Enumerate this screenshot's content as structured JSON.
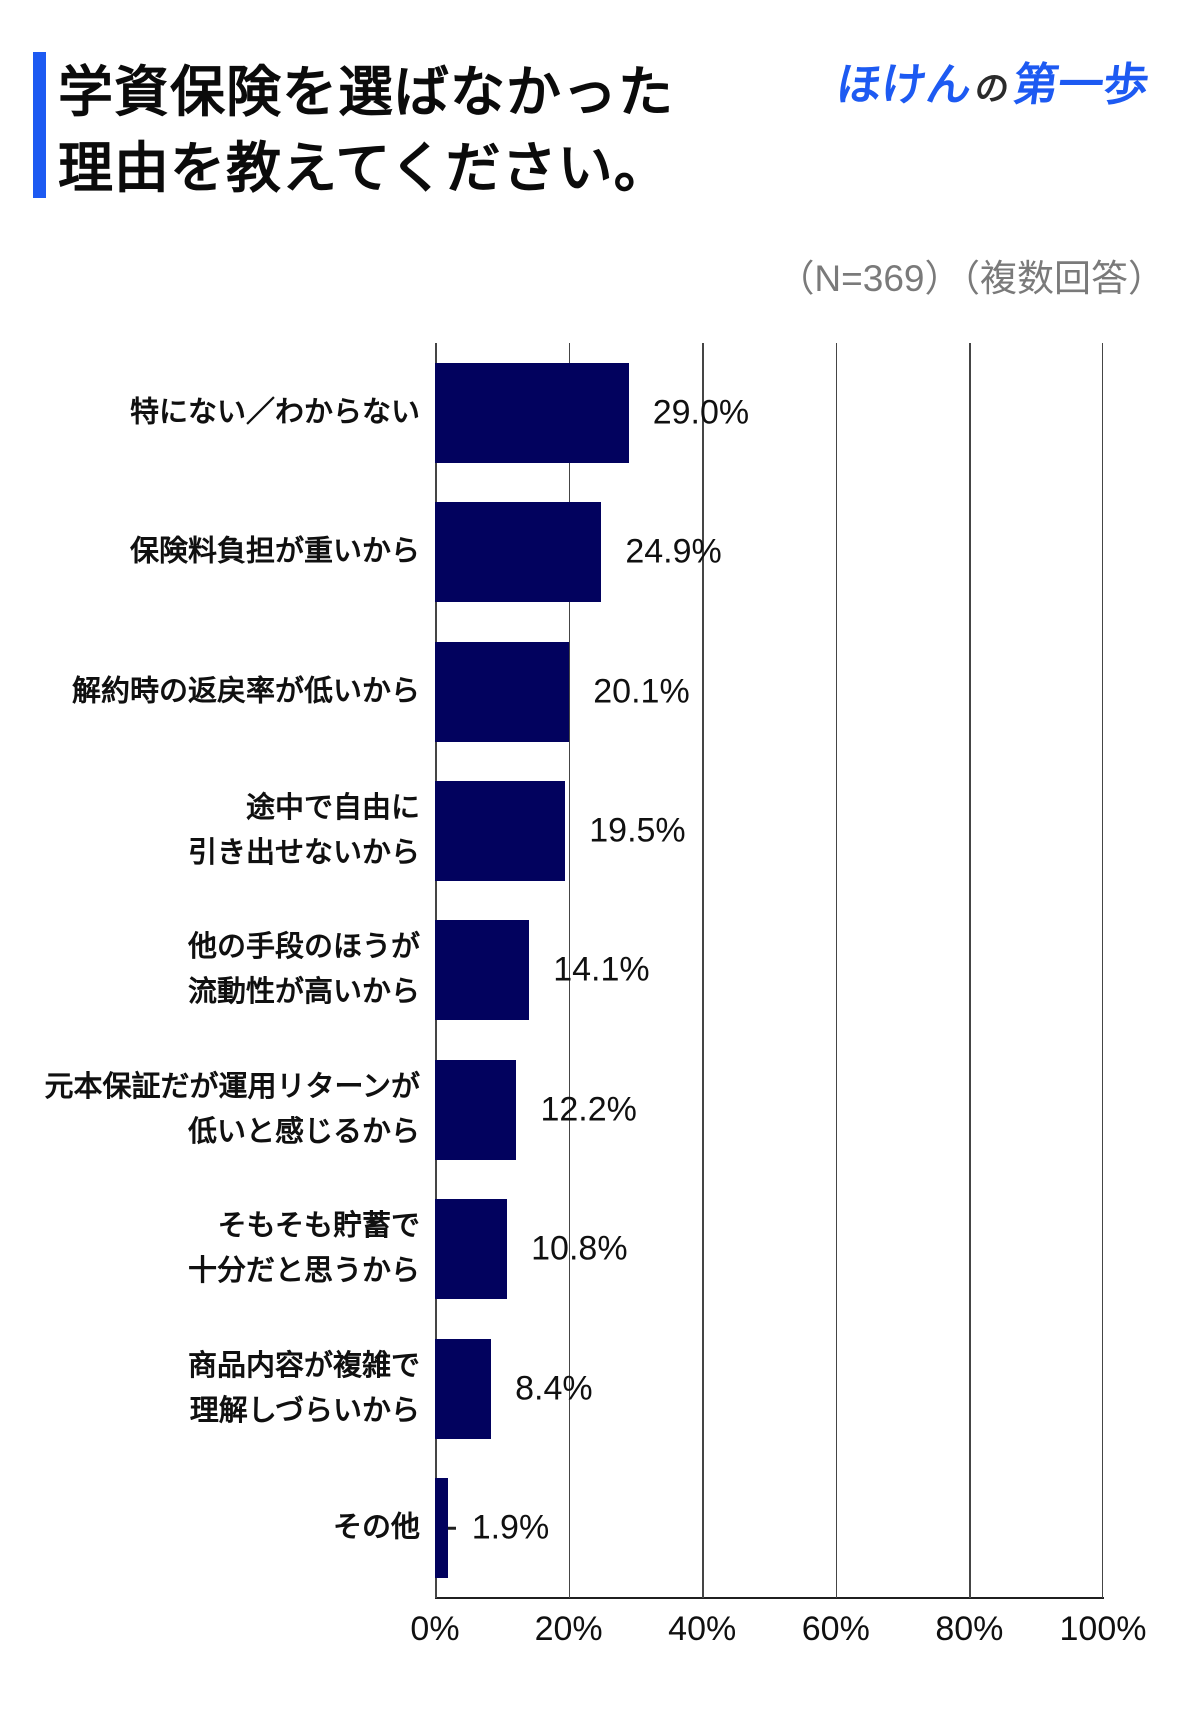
{
  "header": {
    "title_lines": [
      "学資保険を選ばなかった",
      "理由を教えてください。"
    ],
    "accent_color": "#1d5af2"
  },
  "logo": {
    "part1": "ほけん",
    "part2": "の",
    "part3": "第一歩",
    "blue": "#1d5af2",
    "dark": "#2b2b2b"
  },
  "survey_note": "（N=369）（複数回答）",
  "chart_data": {
    "type": "bar",
    "orientation": "horizontal",
    "title": "学資保険を選ばなかった理由を教えてください。",
    "sample_note": "（N=369）（複数回答）",
    "categories": [
      "特にない／わからない",
      "保険料負担が重いから",
      "解約時の返戻率が低いから",
      "途中で自由に引き出せないから",
      "他の手段のほうが流動性が高いから",
      "元本保証だが運用リターンが低いと感じるから",
      "そもそも貯蓄で十分だと思うから",
      "商品内容が複雑で理解しづらいから",
      "その他"
    ],
    "category_lines": [
      [
        "特にない／わからない"
      ],
      [
        "保険料負担が重いから"
      ],
      [
        "解約時の返戻率が低いから"
      ],
      [
        "途中で自由に",
        "引き出せないから"
      ],
      [
        "他の手段のほうが",
        "流動性が高いから"
      ],
      [
        "元本保証だが運用リターンが",
        "低いと感じるから"
      ],
      [
        "そもそも貯蓄で",
        "十分だと思うから"
      ],
      [
        "商品内容が複雑で",
        "理解しづらいから"
      ],
      [
        "その他"
      ]
    ],
    "values": [
      29.0,
      24.9,
      20.1,
      19.5,
      14.1,
      12.2,
      10.8,
      8.4,
      1.9
    ],
    "value_labels": [
      "29.0%",
      "24.9%",
      "20.1%",
      "19.5%",
      "14.1%",
      "12.2%",
      "10.8%",
      "8.4%",
      "1.9%"
    ],
    "x_tick_labels": [
      "0%",
      "20%",
      "40%",
      "60%",
      "80%",
      "100%"
    ],
    "xlim": [
      0,
      100
    ],
    "grid": true,
    "legend": false,
    "bar_color": "#02025e",
    "gridline_color": "#454545"
  }
}
